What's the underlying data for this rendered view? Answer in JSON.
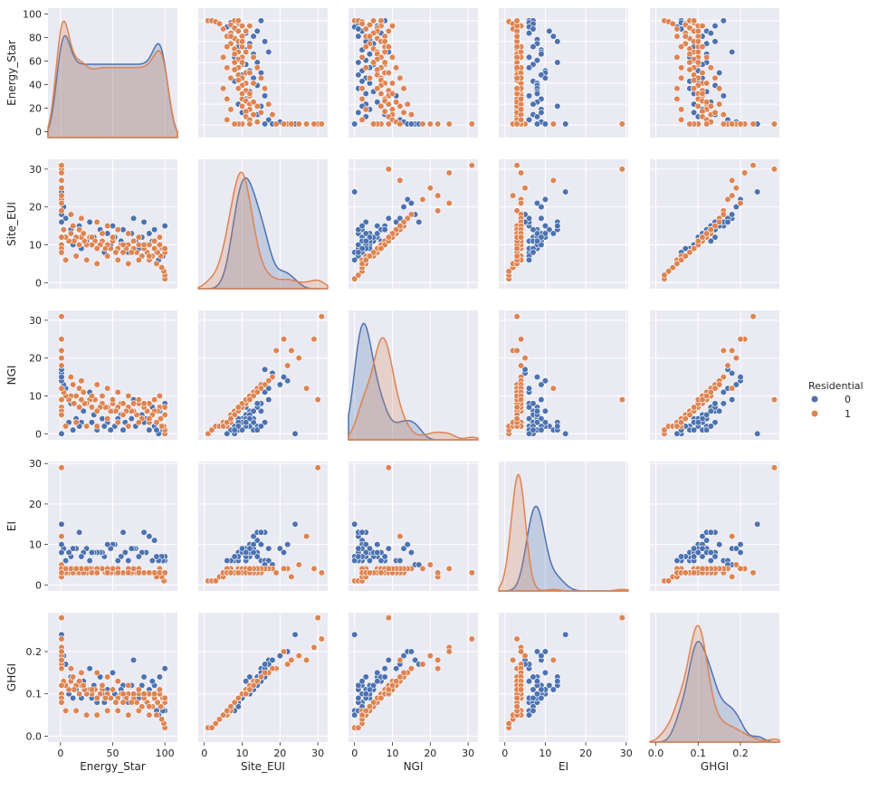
{
  "chart_data": {
    "type": "scatter",
    "kind": "pairplot",
    "variables": [
      "Energy_Star",
      "Site_EUI",
      "NGI",
      "EI",
      "GHGI"
    ],
    "hue": {
      "title": "Residential",
      "levels": [
        {
          "name": "0",
          "color": "#4c72b0"
        },
        {
          "name": "1",
          "color": "#dd8452"
        }
      ]
    },
    "axes": {
      "Energy_Star": {
        "lim": [
          -12,
          112
        ],
        "ticks": [
          0,
          50,
          100
        ],
        "ticklabels": [
          "0",
          "50",
          "100"
        ],
        "yticks": [
          0,
          20,
          40,
          60,
          80,
          100
        ]
      },
      "Site_EUI": {
        "lim": [
          -1.6,
          32.6
        ],
        "ticks": [
          0,
          10,
          20,
          30
        ],
        "ticklabels": [
          "0",
          "10",
          "20",
          "30"
        ]
      },
      "NGI": {
        "lim": [
          -1.6,
          32.6
        ],
        "ticks": [
          0,
          10,
          20,
          30
        ],
        "ticklabels": [
          "0",
          "10",
          "20",
          "30"
        ]
      },
      "EI": {
        "lim": [
          -1.5,
          30.5
        ],
        "ticks": [
          0,
          10,
          20,
          30
        ],
        "ticklabels": [
          "0",
          "10",
          "20",
          "30"
        ]
      },
      "GHGI": {
        "lim": [
          -0.014,
          0.292
        ],
        "ticks": [
          0.0,
          0.1,
          0.2
        ],
        "ticklabels": [
          "0.0",
          "0.1",
          "0.2"
        ]
      }
    },
    "grid": true,
    "legend_position": "right",
    "background": "#eaeaf2",
    "diagonal": "kde",
    "series": [
      {
        "name": "0",
        "values": [
          [
            100,
            15,
            8,
            6,
            0.16
          ],
          [
            95,
            12,
            6,
            7,
            0.14
          ],
          [
            90,
            14,
            2,
            11,
            0.12
          ],
          [
            88,
            11,
            7,
            6,
            0.13
          ],
          [
            85,
            13,
            1,
            12,
            0.11
          ],
          [
            82,
            10,
            4,
            8,
            0.1
          ],
          [
            80,
            16,
            3,
            13,
            0.14
          ],
          [
            78,
            12,
            5,
            8,
            0.12
          ],
          [
            75,
            9,
            3,
            7,
            0.09
          ],
          [
            72,
            11,
            2,
            9,
            0.1
          ],
          [
            70,
            17,
            9,
            9,
            0.18
          ],
          [
            68,
            13,
            4,
            9,
            0.12
          ],
          [
            65,
            8,
            2,
            6,
            0.08
          ],
          [
            62,
            10,
            3,
            8,
            0.09
          ],
          [
            60,
            14,
            1,
            13,
            0.12
          ],
          [
            58,
            11,
            5,
            7,
            0.11
          ],
          [
            55,
            9,
            4,
            6,
            0.09
          ],
          [
            52,
            12,
            2,
            10,
            0.1
          ],
          [
            50,
            15,
            6,
            10,
            0.15
          ],
          [
            48,
            10,
            1,
            9,
            0.09
          ],
          [
            45,
            13,
            3,
            10,
            0.11
          ],
          [
            42,
            8,
            2,
            7,
            0.08
          ],
          [
            40,
            11,
            4,
            8,
            0.1
          ],
          [
            38,
            14,
            7,
            8,
            0.14
          ],
          [
            35,
            9,
            1,
            8,
            0.08
          ],
          [
            32,
            12,
            5,
            8,
            0.12
          ],
          [
            30,
            10,
            3,
            8,
            0.09
          ],
          [
            28,
            16,
            11,
            6,
            0.16
          ],
          [
            25,
            11,
            2,
            9,
            0.1
          ],
          [
            22,
            13,
            6,
            8,
            0.13
          ],
          [
            20,
            9,
            3,
            7,
            0.09
          ],
          [
            18,
            15,
            2,
            13,
            0.13
          ],
          [
            15,
            12,
            4,
            9,
            0.11
          ],
          [
            12,
            10,
            1,
            9,
            0.09
          ],
          [
            10,
            14,
            8,
            7,
            0.14
          ],
          [
            8,
            11,
            3,
            8,
            0.1
          ],
          [
            5,
            17,
            12,
            6,
            0.17
          ],
          [
            3,
            20,
            13,
            9,
            0.19
          ],
          [
            1,
            22,
            14,
            10,
            0.2
          ],
          [
            1,
            24,
            0,
            15,
            0.24
          ],
          [
            1,
            18,
            16,
            5,
            0.18
          ],
          [
            100,
            8,
            0,
            7,
            0.06
          ],
          [
            98,
            7,
            1,
            6,
            0.06
          ],
          [
            97,
            9,
            2,
            7,
            0.07
          ],
          [
            94,
            6,
            0,
            6,
            0.05
          ],
          [
            92,
            8,
            1,
            7,
            0.06
          ],
          [
            1,
            21,
            15,
            8,
            0.2
          ],
          [
            1,
            16,
            17,
            5,
            0.17
          ]
        ]
      },
      {
        "name": "1",
        "values": [
          [
            100,
            8,
            5,
            3,
            0.08
          ],
          [
            98,
            9,
            7,
            3,
            0.09
          ],
          [
            96,
            7,
            4,
            3,
            0.07
          ],
          [
            95,
            10,
            7,
            4,
            0.1
          ],
          [
            93,
            8,
            6,
            3,
            0.08
          ],
          [
            90,
            9,
            6,
            3,
            0.09
          ],
          [
            88,
            7,
            5,
            3,
            0.07
          ],
          [
            85,
            10,
            8,
            3,
            0.1
          ],
          [
            83,
            8,
            6,
            3,
            0.08
          ],
          [
            80,
            9,
            7,
            3,
            0.09
          ],
          [
            78,
            7,
            4,
            3,
            0.07
          ],
          [
            75,
            10,
            8,
            3,
            0.1
          ],
          [
            73,
            8,
            5,
            3,
            0.08
          ],
          [
            70,
            9,
            6,
            4,
            0.09
          ],
          [
            68,
            8,
            6,
            3,
            0.08
          ],
          [
            65,
            10,
            7,
            4,
            0.1
          ],
          [
            63,
            9,
            6,
            3,
            0.09
          ],
          [
            60,
            8,
            5,
            3,
            0.08
          ],
          [
            58,
            10,
            8,
            3,
            0.1
          ],
          [
            55,
            9,
            7,
            3,
            0.09
          ],
          [
            53,
            8,
            6,
            3,
            0.08
          ],
          [
            50,
            11,
            8,
            4,
            0.11
          ],
          [
            48,
            9,
            6,
            3,
            0.09
          ],
          [
            45,
            10,
            7,
            4,
            0.1
          ],
          [
            43,
            9,
            7,
            3,
            0.09
          ],
          [
            40,
            11,
            8,
            4,
            0.11
          ],
          [
            38,
            10,
            7,
            4,
            0.1
          ],
          [
            35,
            9,
            6,
            3,
            0.09
          ],
          [
            33,
            11,
            9,
            3,
            0.11
          ],
          [
            30,
            10,
            7,
            4,
            0.1
          ],
          [
            28,
            12,
            9,
            4,
            0.11
          ],
          [
            25,
            10,
            8,
            3,
            0.1
          ],
          [
            23,
            11,
            8,
            4,
            0.11
          ],
          [
            20,
            12,
            9,
            4,
            0.12
          ],
          [
            18,
            10,
            7,
            4,
            0.1
          ],
          [
            15,
            12,
            10,
            3,
            0.12
          ],
          [
            13,
            11,
            8,
            4,
            0.11
          ],
          [
            10,
            13,
            10,
            4,
            0.13
          ],
          [
            8,
            11,
            9,
            3,
            0.11
          ],
          [
            5,
            12,
            10,
            3,
            0.12
          ],
          [
            3,
            14,
            11,
            4,
            0.13
          ],
          [
            1,
            12,
            9,
            4,
            0.12
          ],
          [
            1,
            10,
            7,
            4,
            0.1
          ],
          [
            1,
            9,
            6,
            3,
            0.09
          ],
          [
            1,
            8,
            5,
            3,
            0.08
          ],
          [
            1,
            30,
            9,
            29,
            0.28
          ],
          [
            1,
            31,
            31,
            3,
            0.23
          ],
          [
            1,
            29,
            25,
            4,
            0.21
          ],
          [
            1,
            25,
            20,
            5,
            0.19
          ],
          [
            1,
            22,
            18,
            4,
            0.17
          ],
          [
            1,
            23,
            22,
            2,
            0.18
          ],
          [
            1,
            27,
            12,
            12,
            0.18
          ],
          [
            1,
            21,
            25,
            4,
            0.2
          ],
          [
            1,
            19,
            22,
            3,
            0.16
          ],
          [
            100,
            1,
            0,
            1,
            0.02
          ],
          [
            100,
            2,
            1,
            1,
            0.02
          ],
          [
            99,
            3,
            2,
            1,
            0.03
          ],
          [
            97,
            4,
            2,
            2,
            0.04
          ],
          [
            92,
            5,
            3,
            2,
            0.05
          ],
          [
            85,
            6,
            3,
            3,
            0.05
          ],
          [
            12,
            15,
            13,
            3,
            0.14
          ],
          [
            18,
            14,
            12,
            3,
            0.13
          ],
          [
            22,
            13,
            11,
            3,
            0.12
          ],
          [
            30,
            12,
            10,
            3,
            0.11
          ],
          [
            40,
            13,
            10,
            4,
            0.12
          ],
          [
            50,
            12,
            9,
            4,
            0.11
          ],
          [
            60,
            10,
            8,
            3,
            0.1
          ],
          [
            70,
            11,
            8,
            4,
            0.1
          ],
          [
            80,
            10,
            8,
            3,
            0.1
          ],
          [
            90,
            11,
            9,
            3,
            0.1
          ],
          [
            95,
            12,
            10,
            3,
            0.11
          ],
          [
            100,
            9,
            7,
            3,
            0.09
          ],
          [
            10,
            18,
            15,
            4,
            0.16
          ],
          [
            20,
            17,
            14,
            4,
            0.15
          ],
          [
            35,
            16,
            13,
            4,
            0.15
          ],
          [
            45,
            15,
            12,
            4,
            0.14
          ],
          [
            55,
            14,
            11,
            4,
            0.13
          ],
          [
            65,
            13,
            10,
            4,
            0.12
          ],
          [
            75,
            12,
            9,
            4,
            0.11
          ],
          [
            5,
            6,
            2,
            4,
            0.06
          ],
          [
            15,
            7,
            3,
            4,
            0.06
          ],
          [
            25,
            6,
            2,
            4,
            0.05
          ],
          [
            35,
            5,
            2,
            3,
            0.05
          ],
          [
            45,
            7,
            4,
            3,
            0.06
          ],
          [
            55,
            6,
            3,
            3,
            0.06
          ],
          [
            65,
            5,
            2,
            3,
            0.05
          ],
          [
            75,
            6,
            3,
            3,
            0.06
          ],
          [
            85,
            7,
            4,
            3,
            0.07
          ]
        ]
      }
    ]
  }
}
